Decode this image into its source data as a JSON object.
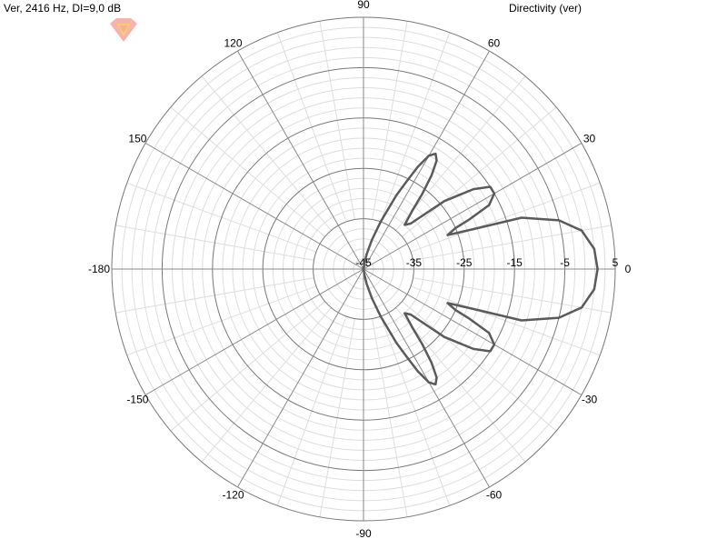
{
  "header": {
    "left_title": "Ver, 2416 Hz, DI=9,0 dB",
    "right_title": "Directivity (ver)"
  },
  "logo": {
    "name": "gem-logo-icon",
    "colors": [
      "#f6a5a0",
      "#f3cf6a"
    ]
  },
  "chart_data": {
    "type": "polar",
    "title": "Directivity (ver)",
    "subtitle": "Ver, 2416 Hz, DI=9,0 dB",
    "angle_unit": "deg",
    "angle_tick_labels": [
      "0",
      "30",
      "60",
      "90",
      "120",
      "150",
      "-180",
      "-150",
      "-120",
      "-90",
      "-60",
      "-30"
    ],
    "radial_tick_labels": [
      "-45",
      "-35",
      "-25",
      "-15",
      "-5",
      "5"
    ],
    "radial_ticks": [
      -45,
      -35,
      -25,
      -15,
      -5,
      5
    ],
    "radial_range": [
      -45,
      5
    ],
    "grid": true,
    "series": [
      {
        "color": "#5a5a5a",
        "angles": [
          0,
          5,
          10,
          14,
          18,
          20,
          22,
          24,
          25,
          27,
          30,
          33,
          36,
          40,
          44,
          47,
          50,
          52,
          54,
          56,
          58,
          60,
          62,
          64,
          66,
          70,
          74,
          78,
          82,
          86,
          90
        ],
        "values": [
          1.5,
          1,
          -1,
          -5,
          -12,
          -22,
          -27,
          -25,
          -22,
          -17,
          -15,
          -15,
          -18,
          -24,
          -32,
          -33,
          -30,
          -26,
          -22,
          -19,
          -18,
          -19,
          -22,
          -26,
          -29,
          -35,
          -39,
          -42,
          -44,
          -45,
          -45
        ]
      }
    ]
  }
}
